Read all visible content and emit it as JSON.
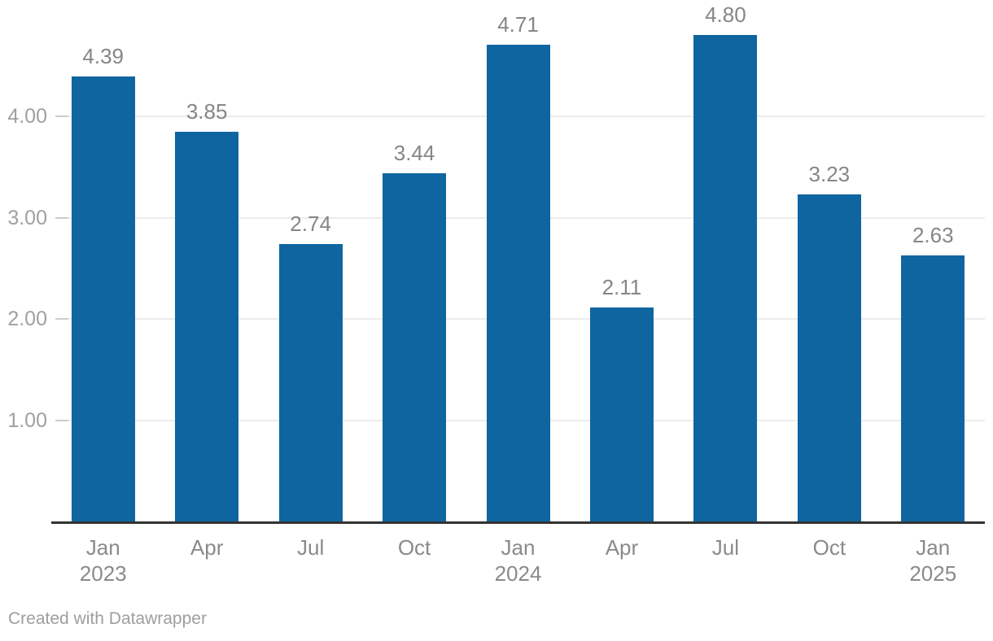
{
  "chart_data": {
    "type": "bar",
    "categories": [
      {
        "month": "Jan",
        "year": "2023"
      },
      {
        "month": "Apr",
        "year": ""
      },
      {
        "month": "Jul",
        "year": ""
      },
      {
        "month": "Oct",
        "year": ""
      },
      {
        "month": "Jan",
        "year": "2024"
      },
      {
        "month": "Apr",
        "year": ""
      },
      {
        "month": "Jul",
        "year": ""
      },
      {
        "month": "Oct",
        "year": ""
      },
      {
        "month": "Jan",
        "year": "2025"
      }
    ],
    "values": [
      4.39,
      3.85,
      2.74,
      3.44,
      4.71,
      2.11,
      4.8,
      3.23,
      2.63
    ],
    "value_labels": [
      "4.39",
      "3.85",
      "2.74",
      "3.44",
      "4.71",
      "2.11",
      "4.80",
      "3.23",
      "2.63"
    ],
    "y_ticks": [
      {
        "value": 1,
        "label": "1.00"
      },
      {
        "value": 2,
        "label": "2.00"
      },
      {
        "value": 3,
        "label": "3.00"
      },
      {
        "value": 4,
        "label": "4.00"
      }
    ],
    "title": "",
    "xlabel": "",
    "ylabel": "",
    "ylim": [
      0,
      5
    ],
    "grid": true,
    "legend": "none",
    "bar_color": "#0f65a0"
  },
  "footer": {
    "attribution": "Created with Datawrapper"
  },
  "colors": {
    "bar": "#0f65a0",
    "axis_line": "#333333",
    "gridline": "#ececec",
    "tick_label": "#a0a0a0",
    "value_label": "#868686",
    "category_label": "#8a8a8a",
    "attribution_text": "#9e9e9e"
  }
}
